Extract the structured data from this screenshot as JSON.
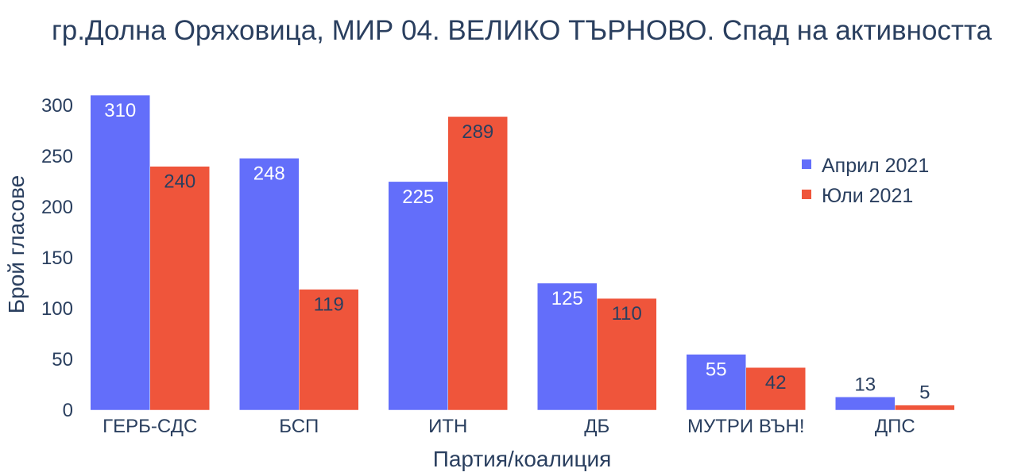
{
  "chart_data": {
    "type": "bar",
    "title": "гр.Долна Оряховица, МИР 04. ВЕЛИКО ТЪРНОВО. Спад на активността",
    "xlabel": "Партия/коалиция",
    "ylabel": "Брой гласове",
    "categories": [
      "ГЕРБ-СДС",
      "БСП",
      "ИТН",
      "ДБ",
      "МУТРИ ВЪН!",
      "ДПС"
    ],
    "ylim": [
      0,
      310
    ],
    "yticks": [
      0,
      50,
      100,
      150,
      200,
      250,
      300
    ],
    "grid": false,
    "legend_position": "top-right",
    "series": [
      {
        "name": "Април 2021",
        "color": "#636efa",
        "values": [
          310,
          248,
          225,
          125,
          55,
          13
        ]
      },
      {
        "name": "Юли 2021",
        "color": "#ef553b",
        "values": [
          240,
          119,
          289,
          110,
          42,
          5
        ]
      }
    ]
  }
}
